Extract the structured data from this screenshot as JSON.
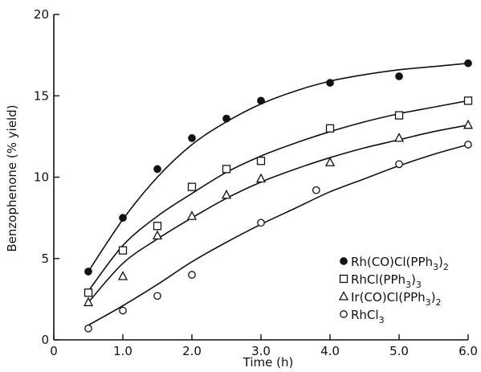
{
  "chart_data": {
    "type": "scatter",
    "xlabel": "Time (h)",
    "ylabel": "Benzophenone (% yield)",
    "xlim": [
      0,
      6.0
    ],
    "ylim": [
      0,
      20
    ],
    "x_ticks": [
      "0",
      "1.0",
      "2.0",
      "3.0",
      "4.0",
      "5.0",
      "6.0"
    ],
    "y_ticks": [
      "0",
      "5",
      "10",
      "15",
      "20"
    ],
    "grid": false,
    "legend_position": "lower-right",
    "series": [
      {
        "name": "Rh(CO)Cl(PPh3)2",
        "marker": "filled-circle",
        "points": [
          [
            0.5,
            4.2
          ],
          [
            1.0,
            7.5
          ],
          [
            1.5,
            10.5
          ],
          [
            2.0,
            12.4
          ],
          [
            2.5,
            13.6
          ],
          [
            3.0,
            14.7
          ],
          [
            4.0,
            15.8
          ],
          [
            5.0,
            16.2
          ],
          [
            6.0,
            17.0
          ]
        ],
        "fit": [
          [
            0.5,
            4.2
          ],
          [
            1.0,
            7.4
          ],
          [
            1.5,
            10.0
          ],
          [
            2.0,
            12.0
          ],
          [
            2.5,
            13.4
          ],
          [
            3.0,
            14.5
          ],
          [
            3.5,
            15.3
          ],
          [
            4.0,
            15.9
          ],
          [
            4.5,
            16.3
          ],
          [
            5.0,
            16.6
          ],
          [
            5.5,
            16.8
          ],
          [
            6.0,
            17.0
          ]
        ]
      },
      {
        "name": "RhCl(PPh3)3",
        "marker": "open-square",
        "points": [
          [
            0.5,
            2.9
          ],
          [
            1.0,
            5.5
          ],
          [
            1.5,
            7.0
          ],
          [
            2.0,
            9.4
          ],
          [
            2.5,
            10.5
          ],
          [
            3.0,
            11.0
          ],
          [
            4.0,
            13.0
          ],
          [
            5.0,
            13.8
          ],
          [
            6.0,
            14.7
          ]
        ],
        "fit": [
          [
            0.5,
            3.0
          ],
          [
            1.0,
            5.8
          ],
          [
            1.5,
            7.6
          ],
          [
            2.0,
            9.0
          ],
          [
            2.5,
            10.3
          ],
          [
            3.0,
            11.3
          ],
          [
            3.5,
            12.1
          ],
          [
            4.0,
            12.8
          ],
          [
            4.5,
            13.4
          ],
          [
            5.0,
            13.9
          ],
          [
            5.5,
            14.3
          ],
          [
            6.0,
            14.7
          ]
        ]
      },
      {
        "name": "Ir(CO)Cl(PPh3)2",
        "marker": "open-triangle",
        "points": [
          [
            0.5,
            2.3
          ],
          [
            1.0,
            3.9
          ],
          [
            1.5,
            6.4
          ],
          [
            2.0,
            7.6
          ],
          [
            2.5,
            8.9
          ],
          [
            3.0,
            9.9
          ],
          [
            4.0,
            10.9
          ],
          [
            5.0,
            12.4
          ],
          [
            6.0,
            13.2
          ]
        ],
        "fit": [
          [
            0.5,
            2.3
          ],
          [
            1.0,
            4.7
          ],
          [
            1.5,
            6.2
          ],
          [
            2.0,
            7.5
          ],
          [
            2.5,
            8.7
          ],
          [
            3.0,
            9.7
          ],
          [
            3.5,
            10.5
          ],
          [
            4.0,
            11.2
          ],
          [
            4.5,
            11.8
          ],
          [
            5.0,
            12.3
          ],
          [
            5.5,
            12.8
          ],
          [
            6.0,
            13.2
          ]
        ]
      },
      {
        "name": "RhCl3",
        "marker": "open-circle",
        "points": [
          [
            0.5,
            0.7
          ],
          [
            1.0,
            1.8
          ],
          [
            1.5,
            2.7
          ],
          [
            2.0,
            4.0
          ],
          [
            3.0,
            7.2
          ],
          [
            3.8,
            9.2
          ],
          [
            5.0,
            10.8
          ],
          [
            6.0,
            12.0
          ]
        ],
        "fit": [
          [
            0.5,
            0.9
          ],
          [
            1.0,
            2.1
          ],
          [
            1.5,
            3.4
          ],
          [
            2.0,
            4.8
          ],
          [
            2.5,
            6.0
          ],
          [
            3.0,
            7.1
          ],
          [
            3.5,
            8.1
          ],
          [
            4.0,
            9.1
          ],
          [
            4.5,
            9.9
          ],
          [
            5.0,
            10.7
          ],
          [
            5.5,
            11.4
          ],
          [
            6.0,
            12.0
          ]
        ]
      }
    ],
    "legend": [
      {
        "marker": "filled-circle",
        "label": "Rh(CO)Cl(PPh",
        "sub": "3",
        "close": ")",
        "sub2": "2"
      },
      {
        "marker": "open-square",
        "label": "RhCl(PPh",
        "sub": "3",
        "close": ")",
        "sub2": "3"
      },
      {
        "marker": "open-triangle",
        "label": "Ir(CO)Cl(PPh",
        "sub": "3",
        "close": ")",
        "sub2": "2"
      },
      {
        "marker": "open-circle",
        "label": "RhCl",
        "sub": "3",
        "close": "",
        "sub2": ""
      }
    ]
  }
}
